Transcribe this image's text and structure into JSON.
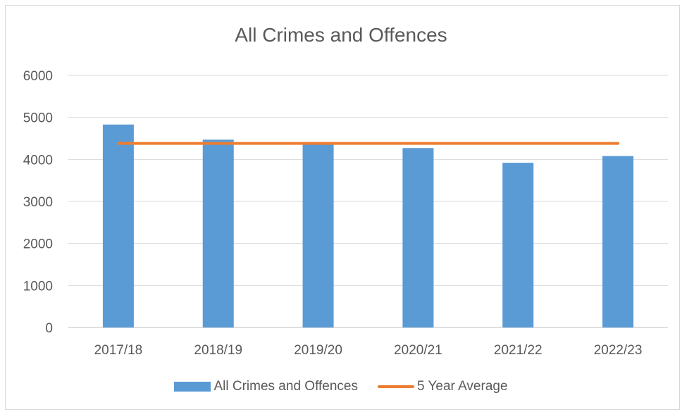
{
  "chart_data": {
    "type": "bar",
    "title": "All Crimes and Offences",
    "categories": [
      "2017/18",
      "2018/19",
      "2019/20",
      "2020/21",
      "2021/22",
      "2022/23"
    ],
    "series": [
      {
        "name": "All Crimes and Offences",
        "type": "bar",
        "color": "#5b9bd5",
        "values": [
          4830,
          4470,
          4390,
          4270,
          3920,
          4080
        ]
      },
      {
        "name": "5 Year Average",
        "type": "line",
        "color": "#ed7d31",
        "values": [
          4380,
          4380,
          4380,
          4380,
          4380,
          4380
        ]
      }
    ],
    "ylim": [
      0,
      6000
    ],
    "yticks": [
      0,
      1000,
      2000,
      3000,
      4000,
      5000,
      6000
    ],
    "xlabel": "",
    "ylabel": "",
    "grid": true,
    "legend_position": "bottom"
  }
}
